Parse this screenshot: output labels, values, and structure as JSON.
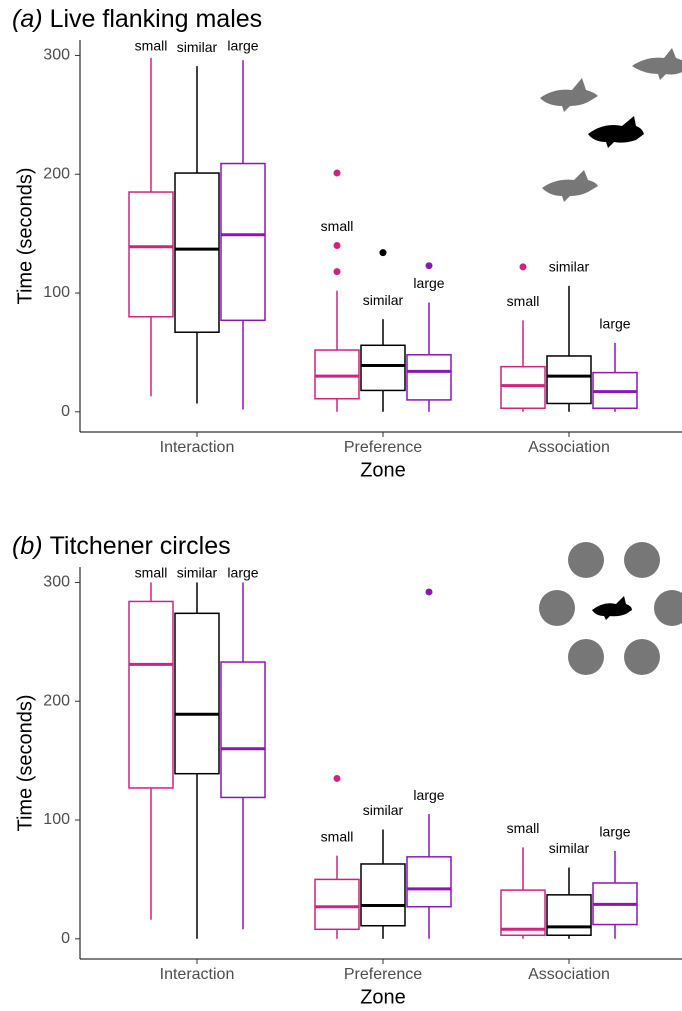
{
  "chart_data": [
    {
      "type": "box",
      "label": "(a)",
      "title": "Live flanking males",
      "x_label": "Zone",
      "y_label": "Time (seconds)",
      "categories": [
        "Interaction",
        "Preference",
        "Association"
      ],
      "ylim": [
        -17,
        313
      ],
      "yticks": [
        0,
        100,
        200,
        300
      ],
      "grid": false,
      "series": [
        {
          "name": "small",
          "color": "#d0237f",
          "whisker_low": [
            13,
            0,
            0
          ],
          "q1": [
            80,
            11,
            3
          ],
          "median": [
            139,
            30,
            22
          ],
          "q3": [
            185,
            52,
            38
          ],
          "whisker_high": [
            298,
            102,
            77
          ],
          "outliers": [
            [],
            [
              118,
              140,
              201
            ],
            [
              122
            ]
          ]
        },
        {
          "name": "similar",
          "color": "#000000",
          "whisker_low": [
            7,
            0,
            0
          ],
          "q1": [
            67,
            18,
            7
          ],
          "median": [
            137,
            39,
            30
          ],
          "q3": [
            201,
            56,
            47
          ],
          "whisker_high": [
            291,
            78,
            106
          ],
          "outliers": [
            [],
            [
              134
            ],
            []
          ]
        },
        {
          "name": "large",
          "color": "#8a17b5",
          "whisker_low": [
            2,
            0,
            0
          ],
          "q1": [
            77,
            10,
            3
          ],
          "median": [
            149,
            34,
            17
          ],
          "q3": [
            209,
            48,
            33
          ],
          "whisker_high": [
            296,
            92,
            58
          ],
          "outliers": [
            [],
            [
              123
            ],
            []
          ]
        }
      ]
    },
    {
      "type": "box",
      "label": "(b)",
      "title": "Titchener circles",
      "x_label": "Zone",
      "y_label": "Time (seconds)",
      "categories": [
        "Interaction",
        "Preference",
        "Association"
      ],
      "ylim": [
        -17,
        313
      ],
      "yticks": [
        0,
        100,
        200,
        300
      ],
      "grid": false,
      "series": [
        {
          "name": "small",
          "color": "#d0237f",
          "whisker_low": [
            16,
            0,
            0
          ],
          "q1": [
            127,
            8,
            3
          ],
          "median": [
            231,
            27,
            8
          ],
          "q3": [
            284,
            50,
            41
          ],
          "whisker_high": [
            300,
            70,
            77
          ],
          "outliers": [
            [],
            [
              135
            ],
            []
          ]
        },
        {
          "name": "similar",
          "color": "#000000",
          "whisker_low": [
            0,
            0,
            0
          ],
          "q1": [
            139,
            11,
            3
          ],
          "median": [
            189,
            28,
            10
          ],
          "q3": [
            274,
            63,
            37
          ],
          "whisker_high": [
            300,
            92,
            60
          ],
          "outliers": [
            [],
            [],
            []
          ]
        },
        {
          "name": "large",
          "color": "#8a17b5",
          "whisker_low": [
            8,
            0,
            0
          ],
          "q1": [
            119,
            27,
            12
          ],
          "median": [
            160,
            42,
            29
          ],
          "q3": [
            233,
            69,
            47
          ],
          "whisker_high": [
            300,
            105,
            74
          ],
          "outliers": [
            [],
            [
              292
            ],
            []
          ]
        }
      ]
    }
  ]
}
